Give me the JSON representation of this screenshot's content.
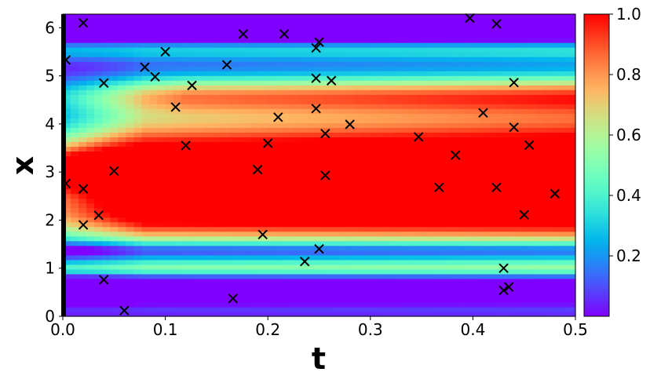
{
  "chart_data": {
    "type": "heatmap",
    "xlabel": "t",
    "ylabel": "x",
    "xlim": [
      0.0,
      0.5
    ],
    "ylim": [
      0.0,
      6.283
    ],
    "x_ticks": [
      "0.0",
      "0.1",
      "0.2",
      "0.3",
      "0.4",
      "0.5"
    ],
    "y_ticks": [
      "0",
      "1",
      "2",
      "3",
      "4",
      "5",
      "6"
    ],
    "colormap": "rainbow",
    "colorbar": {
      "range": [
        0.0,
        1.0
      ],
      "ticks": [
        "0.2",
        "0.4",
        "0.6",
        "0.8",
        "1.0"
      ]
    },
    "field_description": "normalized solution magnitude; high band centered near x=3 widening with t, low regions near x=0.5 and x=6",
    "markers": {
      "symbol": "x",
      "color": "#000000",
      "points": [
        {
          "t": 0.003,
          "x": 5.33
        },
        {
          "t": 0.003,
          "x": 2.76
        },
        {
          "t": 0.02,
          "x": 6.1
        },
        {
          "t": 0.02,
          "x": 2.65
        },
        {
          "t": 0.02,
          "x": 1.9
        },
        {
          "t": 0.035,
          "x": 2.1
        },
        {
          "t": 0.04,
          "x": 4.85
        },
        {
          "t": 0.04,
          "x": 0.76
        },
        {
          "t": 0.05,
          "x": 3.02
        },
        {
          "t": 0.06,
          "x": 0.12
        },
        {
          "t": 0.08,
          "x": 5.18
        },
        {
          "t": 0.09,
          "x": 4.98
        },
        {
          "t": 0.1,
          "x": 5.5
        },
        {
          "t": 0.11,
          "x": 4.35
        },
        {
          "t": 0.12,
          "x": 3.55
        },
        {
          "t": 0.126,
          "x": 4.8
        },
        {
          "t": 0.16,
          "x": 5.23
        },
        {
          "t": 0.166,
          "x": 0.37
        },
        {
          "t": 0.176,
          "x": 5.87
        },
        {
          "t": 0.19,
          "x": 3.05
        },
        {
          "t": 0.195,
          "x": 1.7
        },
        {
          "t": 0.2,
          "x": 3.6
        },
        {
          "t": 0.21,
          "x": 4.14
        },
        {
          "t": 0.216,
          "x": 5.87
        },
        {
          "t": 0.236,
          "x": 1.14
        },
        {
          "t": 0.247,
          "x": 5.58
        },
        {
          "t": 0.247,
          "x": 4.95
        },
        {
          "t": 0.247,
          "x": 4.32
        },
        {
          "t": 0.25,
          "x": 5.7
        },
        {
          "t": 0.25,
          "x": 1.4
        },
        {
          "t": 0.256,
          "x": 3.8
        },
        {
          "t": 0.256,
          "x": 2.93
        },
        {
          "t": 0.262,
          "x": 4.9
        },
        {
          "t": 0.28,
          "x": 3.99
        },
        {
          "t": 0.347,
          "x": 3.73
        },
        {
          "t": 0.367,
          "x": 2.68
        },
        {
          "t": 0.383,
          "x": 3.35
        },
        {
          "t": 0.397,
          "x": 6.2
        },
        {
          "t": 0.41,
          "x": 4.23
        },
        {
          "t": 0.423,
          "x": 6.08
        },
        {
          "t": 0.423,
          "x": 2.68
        },
        {
          "t": 0.43,
          "x": 1.0
        },
        {
          "t": 0.43,
          "x": 0.54
        },
        {
          "t": 0.435,
          "x": 0.61
        },
        {
          "t": 0.44,
          "x": 4.86
        },
        {
          "t": 0.44,
          "x": 3.93
        },
        {
          "t": 0.45,
          "x": 2.11
        },
        {
          "t": 0.455,
          "x": 3.56
        },
        {
          "t": 0.48,
          "x": 2.55
        }
      ]
    },
    "boundary_line": {
      "t": 0.0,
      "color": "#000000"
    }
  }
}
